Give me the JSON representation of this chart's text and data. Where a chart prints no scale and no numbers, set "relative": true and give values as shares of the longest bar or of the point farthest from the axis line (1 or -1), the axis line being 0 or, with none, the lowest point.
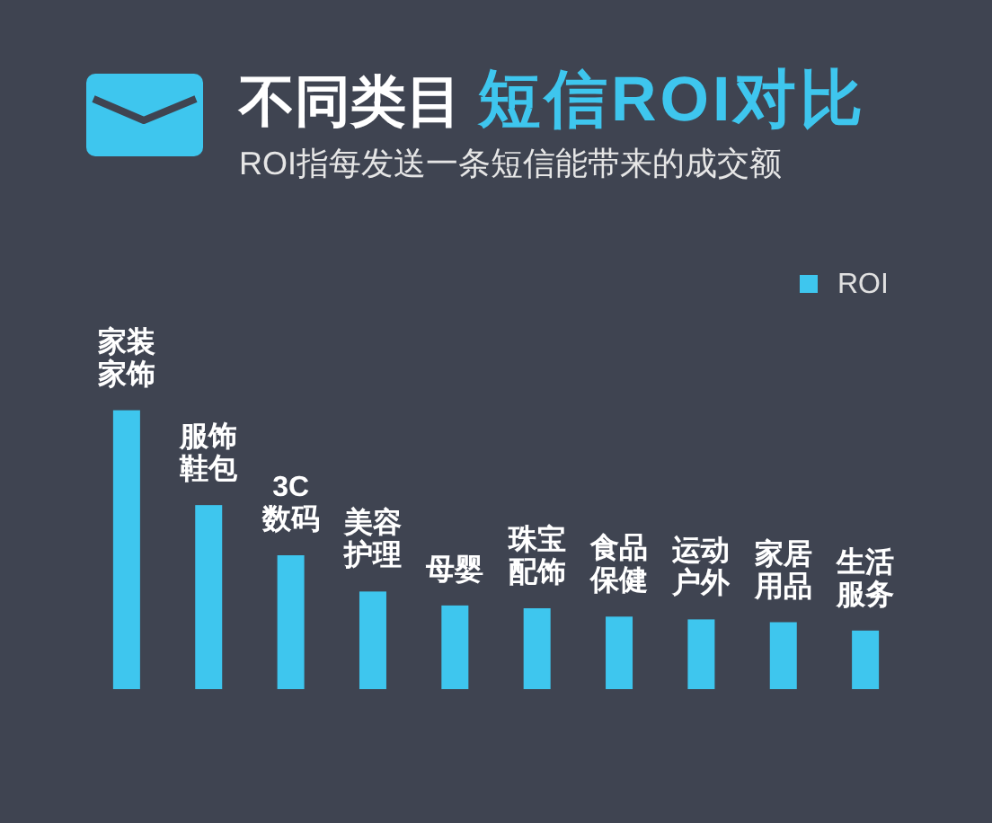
{
  "chart_data": {
    "type": "bar",
    "title": "不同类目短信ROI对比",
    "subtitle": "ROI指每发送一条短信能带来的成交额",
    "categories": [
      "家装家饰",
      "服饰鞋包",
      "3C数码",
      "美容护理",
      "母婴",
      "珠宝配饰",
      "食品保健",
      "运动户外",
      "家居用品",
      "生活服务"
    ],
    "series": [
      {
        "name": "ROI",
        "color": "#3ec6ee",
        "values": [
          1,
          0.66,
          0.48,
          0.35,
          0.3,
          0.29,
          0.26,
          0.25,
          0.24,
          0.21
        ]
      }
    ],
    "relative": true,
    "legend": "top right"
  }
}
